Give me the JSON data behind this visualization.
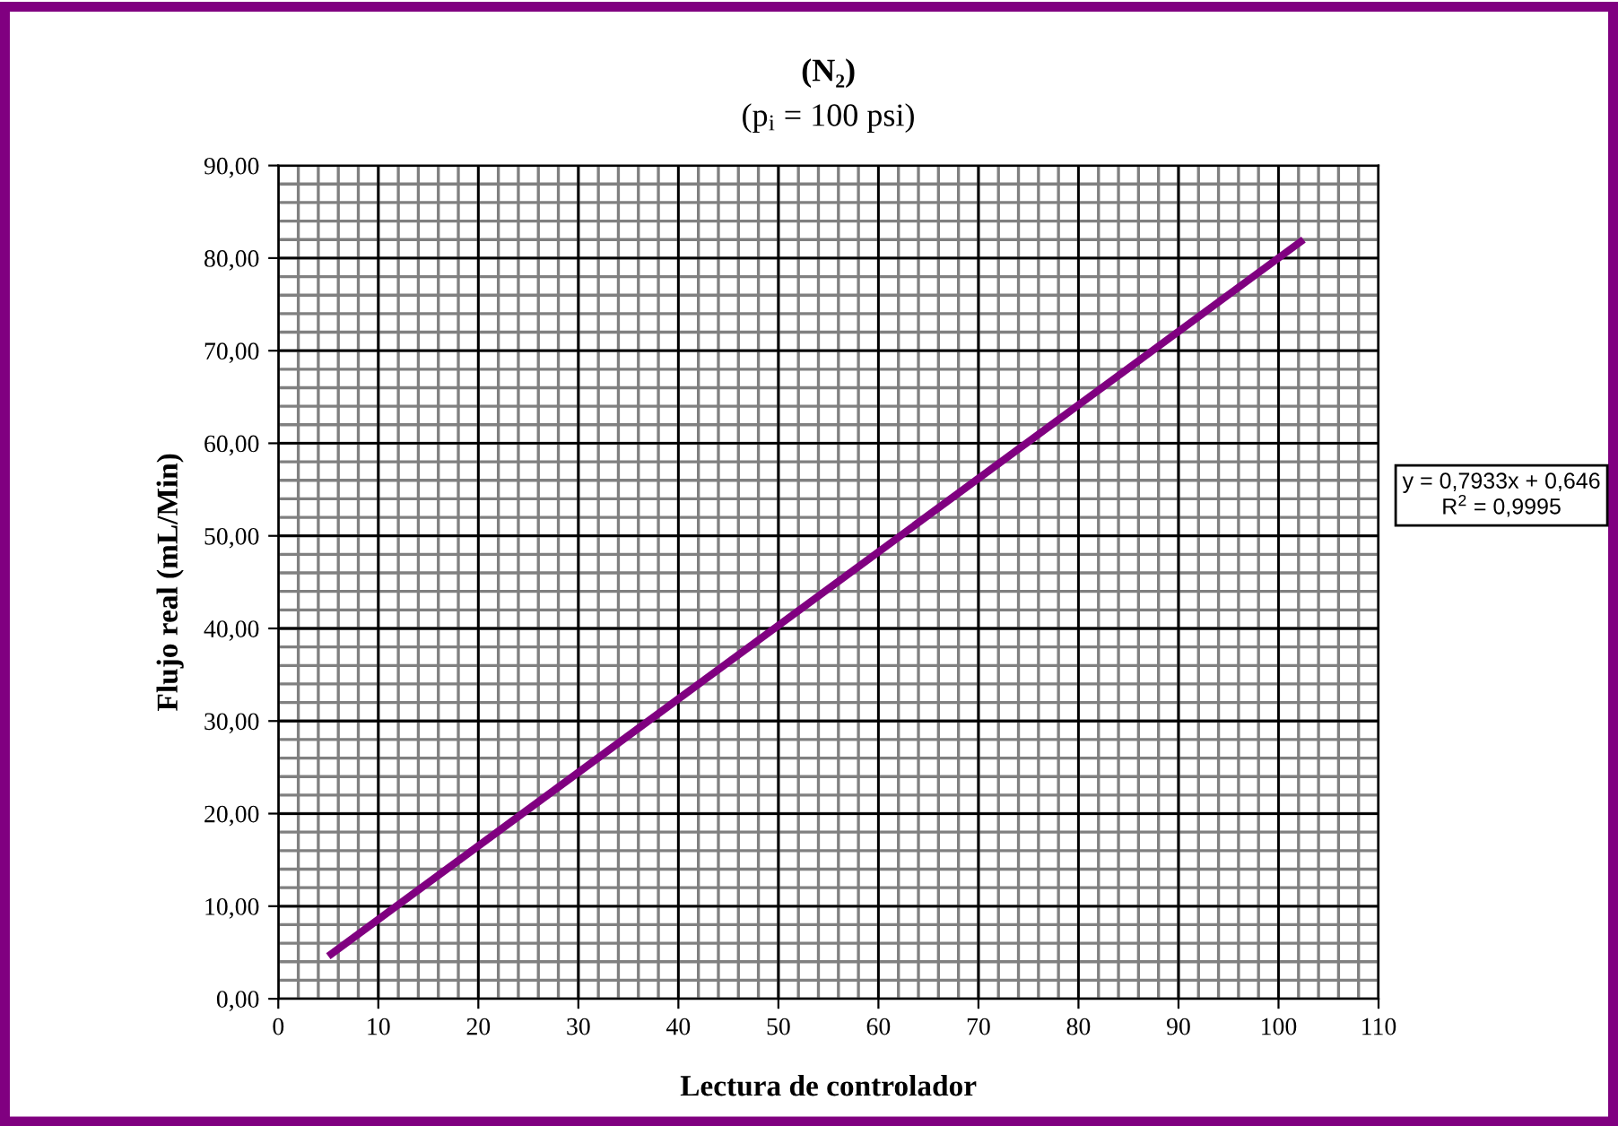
{
  "chart_data": {
    "type": "line",
    "title": "(N₂)",
    "subtitle": "(p$_{i}$ = 100 psi)",
    "xlabel": "Lectura de controlador",
    "ylabel": "Flujo real (mL/Min)",
    "x": [
      5,
      102.5
    ],
    "series": [
      {
        "color": "#800080",
        "values": [
          4.6,
          82.0
        ]
      }
    ],
    "xlim": [
      0,
      110
    ],
    "xticks": [
      0,
      10,
      20,
      30,
      40,
      50,
      60,
      70,
      80,
      90,
      100,
      110
    ],
    "ylim": [
      0,
      90
    ],
    "yticks": [
      {
        "value": 0,
        "label": "0,00"
      },
      {
        "value": 10,
        "label": "10,00"
      },
      {
        "value": 20,
        "label": "20,00"
      },
      {
        "value": 30,
        "label": "30,00"
      },
      {
        "value": 40,
        "label": "40,00"
      },
      {
        "value": 50,
        "label": "50,00"
      },
      {
        "value": 60,
        "label": "60,00"
      },
      {
        "value": 70,
        "label": "70,00"
      },
      {
        "value": 80,
        "label": "80,00"
      },
      {
        "value": 90,
        "label": "90,00"
      }
    ],
    "grid": true,
    "marker": "none",
    "line_style": "solid",
    "annotations": [
      "y = 0,7933x + 0,646\nR$^{2}$ = 0,9995"
    ]
  }
}
